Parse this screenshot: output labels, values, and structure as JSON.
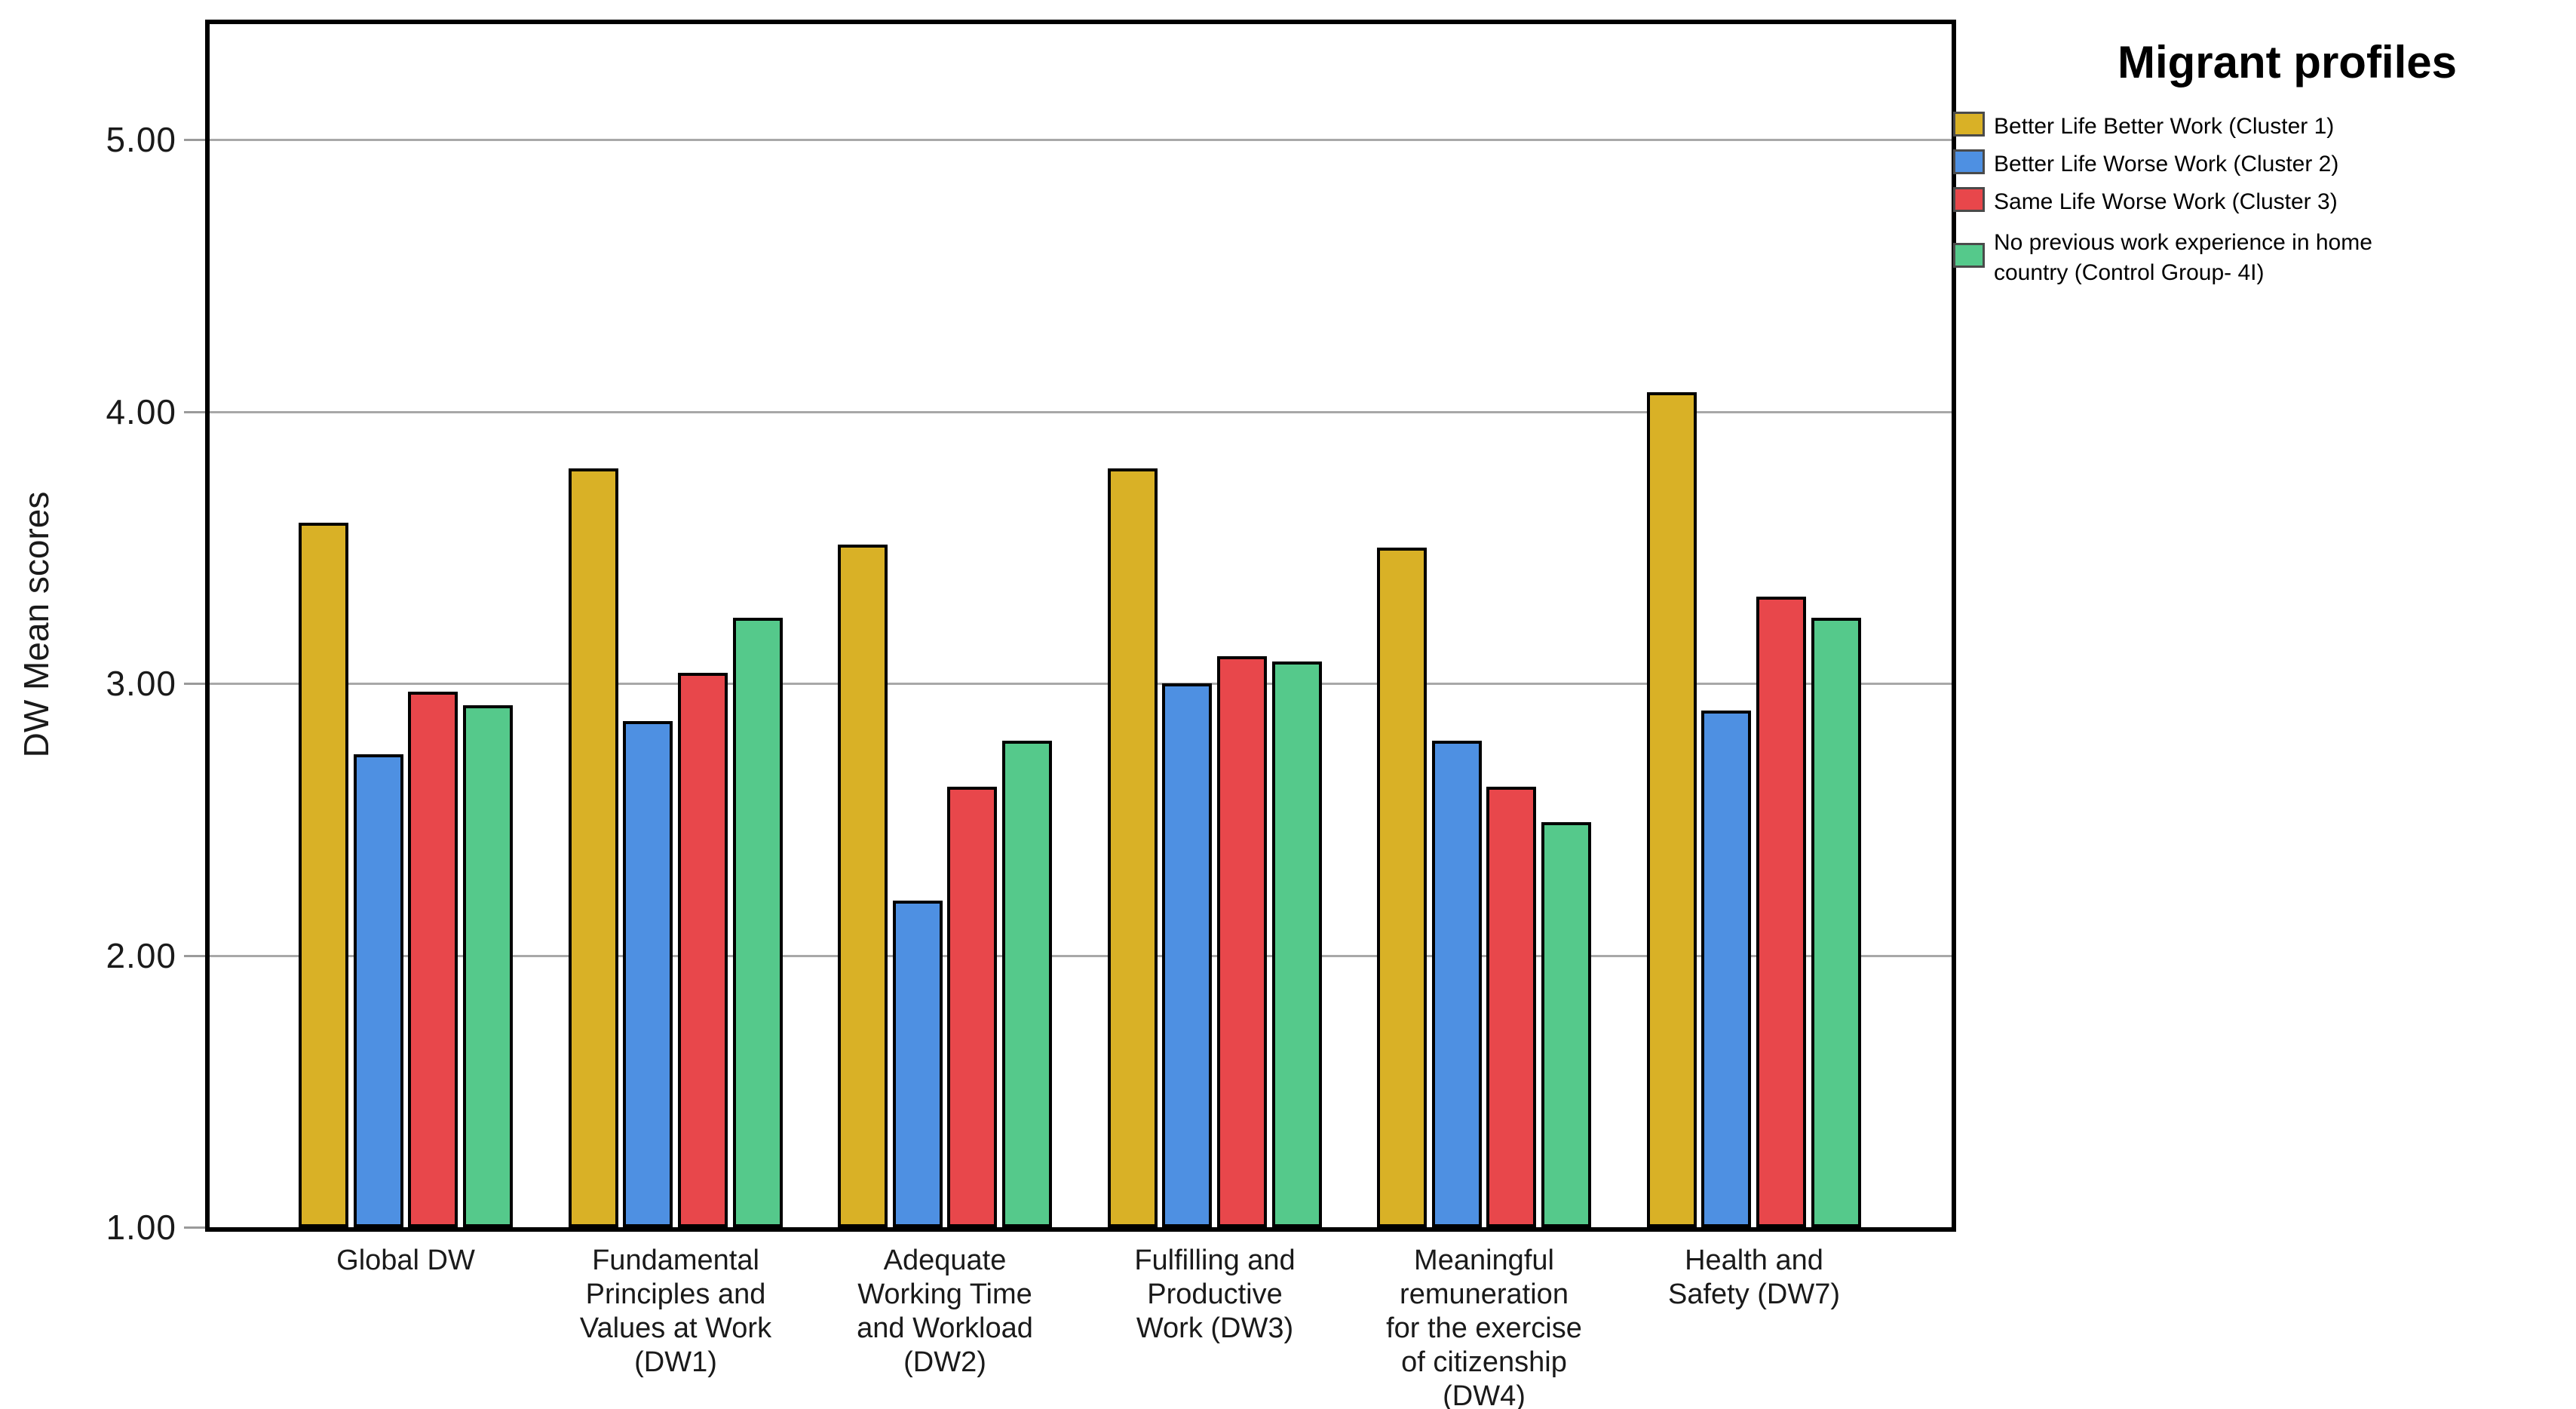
{
  "chart_data": {
    "type": "bar",
    "title": "",
    "ylabel": "DW Mean scores",
    "xlabel": "",
    "legend_title": "Migrant profiles",
    "legend_position": "right-top",
    "grid": true,
    "categories": [
      "Global DW",
      "Fundamental\nPrinciples and\nValues at Work\n(DW1)",
      "Adequate\nWorking Time\nand Workload\n(DW2)",
      "Fulfilling and\nProductive\nWork (DW3)",
      "Meaningful\nremuneration\nfor the exercise\nof citizenship\n(DW4)",
      "Health and\nSafety (DW7)"
    ],
    "series": [
      {
        "name": "Better Life Better Work (Cluster 1)",
        "color": "#D9B126",
        "values": [
          3.59,
          3.79,
          3.51,
          3.79,
          3.5,
          4.07
        ]
      },
      {
        "name": "Better Life Worse Work (Cluster 2)",
        "color": "#4E90E2",
        "values": [
          2.74,
          2.86,
          2.2,
          3.0,
          2.79,
          2.9
        ]
      },
      {
        "name": "Same Life Worse Work (Cluster 3)",
        "color": "#E8474B",
        "values": [
          2.97,
          3.04,
          2.62,
          3.1,
          2.62,
          3.32
        ]
      },
      {
        "name": "No previous work experience in home\ncountry  (Control Group- 4I)",
        "color": "#55C98B",
        "values": [
          2.92,
          3.24,
          2.79,
          3.08,
          2.49,
          3.24
        ]
      }
    ],
    "y_ticks": [
      "1.00",
      "2.00",
      "3.00",
      "4.00",
      "5.00"
    ],
    "y_tick_values": [
      1,
      2,
      3,
      4,
      5
    ],
    "ylim": [
      1.0,
      5.42
    ],
    "colors": {
      "axis_frame": "#000000",
      "gridline": "#a8a8a8",
      "background": "#ffffff",
      "bar_outline": "#000000"
    }
  }
}
